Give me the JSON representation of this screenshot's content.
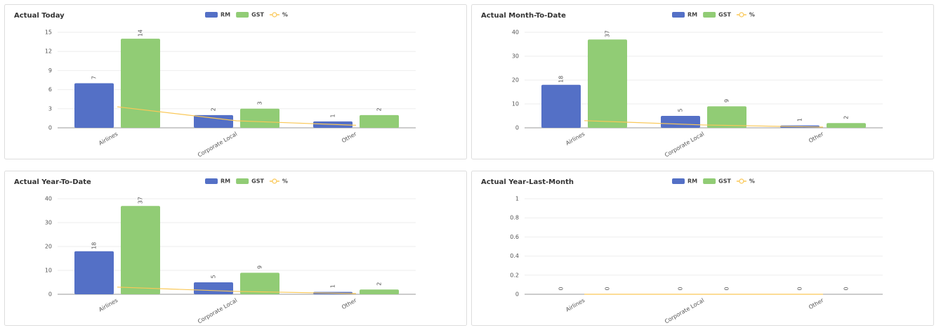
{
  "chart_data": [
    {
      "type": "bar",
      "title": "Actual Today",
      "categories": [
        "Airlines",
        "Corporate Local",
        "Other"
      ],
      "series": [
        {
          "name": "RM",
          "color": "#5470c6",
          "values": [
            7,
            2,
            1
          ]
        },
        {
          "name": "GST",
          "color": "#91cc75",
          "values": [
            14,
            3,
            2
          ]
        },
        {
          "name": "%",
          "type": "line",
          "color": "#fac858",
          "values": [
            3.3,
            1.1,
            0.4
          ]
        }
      ],
      "ylim": [
        0,
        15
      ],
      "yticks": [
        0,
        3,
        6,
        9,
        12,
        15
      ],
      "grid": true
    },
    {
      "type": "bar",
      "title": "Actual Month-To-Date",
      "categories": [
        "Airlines",
        "Corporate Local",
        "Other"
      ],
      "series": [
        {
          "name": "RM",
          "color": "#5470c6",
          "values": [
            18,
            5,
            1
          ]
        },
        {
          "name": "GST",
          "color": "#91cc75",
          "values": [
            37,
            9,
            2
          ]
        },
        {
          "name": "%",
          "type": "line",
          "color": "#fac858",
          "values": [
            3,
            1.2,
            0.3
          ]
        }
      ],
      "ylim": [
        0,
        40
      ],
      "yticks": [
        0,
        10,
        20,
        30,
        40
      ],
      "grid": true
    },
    {
      "type": "bar",
      "title": "Actual Year-To-Date",
      "categories": [
        "Airlines",
        "Corporate Local",
        "Other"
      ],
      "series": [
        {
          "name": "RM",
          "color": "#5470c6",
          "values": [
            18,
            5,
            1
          ]
        },
        {
          "name": "GST",
          "color": "#91cc75",
          "values": [
            37,
            9,
            2
          ]
        },
        {
          "name": "%",
          "type": "line",
          "color": "#fac858",
          "values": [
            3,
            1.2,
            0.3
          ]
        }
      ],
      "ylim": [
        0,
        40
      ],
      "yticks": [
        0,
        10,
        20,
        30,
        40
      ],
      "grid": true
    },
    {
      "type": "bar",
      "title": "Actual Year-Last-Month",
      "categories": [
        "Airlines",
        "Corporate Local",
        "Other"
      ],
      "series": [
        {
          "name": "RM",
          "color": "#5470c6",
          "values": [
            0,
            0,
            0
          ]
        },
        {
          "name": "GST",
          "color": "#91cc75",
          "values": [
            0,
            0,
            0
          ]
        },
        {
          "name": "%",
          "type": "line",
          "color": "#fac858",
          "values": [
            0,
            0,
            0
          ]
        }
      ],
      "ylim": [
        0,
        1
      ],
      "yticks": [
        0,
        0.2,
        0.4,
        0.6,
        0.8,
        1
      ],
      "grid": true
    }
  ]
}
